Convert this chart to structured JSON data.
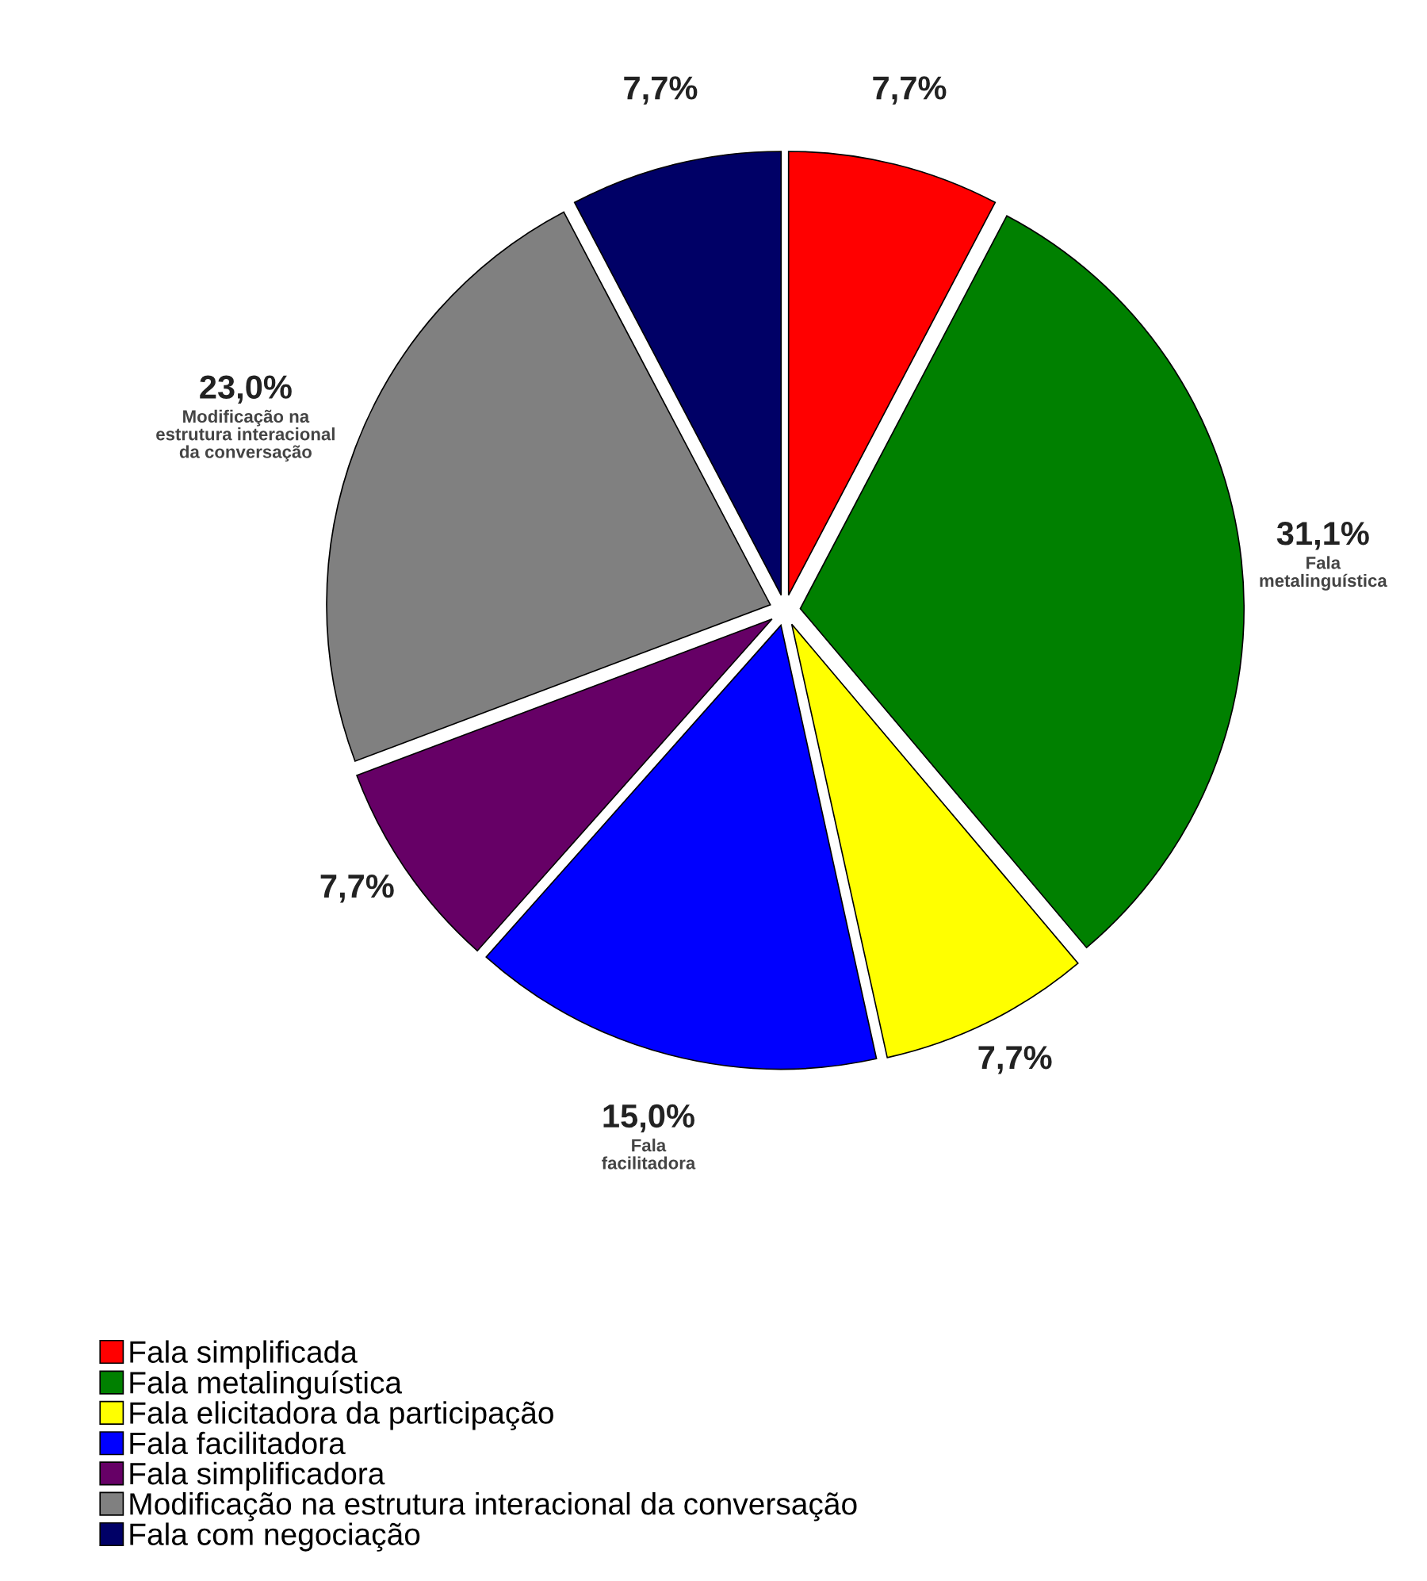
{
  "chart_data": {
    "type": "pie",
    "categories": [
      "Fala simplificada",
      "Fala metalinguística",
      "Fala elicitadora da participação",
      "Fala facilitadora",
      "Fala simplificadora",
      "Modificação na estrutura interacional da conversação",
      "Fala com negociação"
    ],
    "values": [
      7.7,
      31.1,
      7.7,
      15.0,
      7.7,
      23.0,
      7.7
    ],
    "colors": [
      "#ff0000",
      "#008000",
      "#ffff00",
      "#0000ff",
      "#660066",
      "#808080",
      "#000066"
    ],
    "value_labels": [
      "7,7%",
      "31,1%\nFala\nmetalinguística",
      "7,7%",
      "15,0%\nFala\nfacilitadora",
      "7,7%",
      "23,0%\nModificação na\nestrutura interacional\nda conversação",
      "7,7%"
    ],
    "legend": "bottom left"
  }
}
